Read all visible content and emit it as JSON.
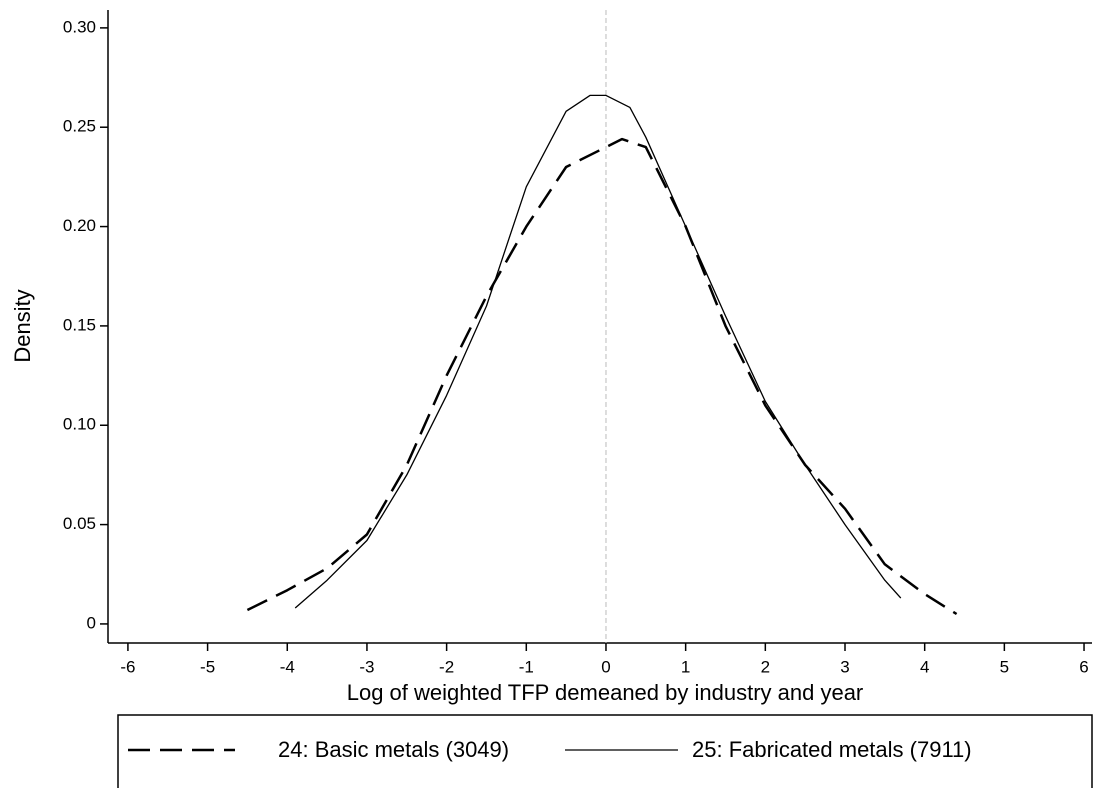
{
  "chart_data": {
    "type": "line",
    "x_label": "Log of weighted TFP demeaned by industry and year",
    "y_label": "Density",
    "xlim": [
      -6.25,
      6.1
    ],
    "ylim": [
      -0.0096,
      0.309
    ],
    "xticks": [
      -6,
      -5,
      -4,
      -3,
      -2,
      -1,
      0,
      1,
      2,
      3,
      4,
      5,
      6
    ],
    "yticks": [
      0,
      {
        "value": 0.05,
        "label": "0.05"
      },
      {
        "value": 0.1,
        "label": "0.10"
      },
      {
        "value": 0.15,
        "label": "0.15"
      },
      {
        "value": 0.2,
        "label": "0.20"
      },
      {
        "value": 0.25,
        "label": "0.25"
      },
      {
        "value": 0.3,
        "label": "0.30"
      }
    ],
    "vline": 0,
    "series": [
      {
        "name": "24: Basic metals (3049)",
        "color": "#000000",
        "line_style": "dashed",
        "x": [
          -4.5,
          -4,
          -3.5,
          -3,
          -2.5,
          -2,
          -1.5,
          -1,
          -0.5,
          0,
          0.2,
          0.5,
          1,
          1.5,
          2,
          2.5,
          3,
          3.5,
          4,
          4.4
        ],
        "values": [
          0.007,
          0.017,
          0.028,
          0.045,
          0.08,
          0.125,
          0.165,
          0.2,
          0.23,
          0.24,
          0.244,
          0.24,
          0.2,
          0.15,
          0.11,
          0.08,
          0.058,
          0.03,
          0.015,
          0.005
        ]
      },
      {
        "name": "25: Fabricated metals (7911)",
        "color": "#000000",
        "line_style": "solid",
        "x": [
          -3.9,
          -3.5,
          -3,
          -2.5,
          -2,
          -1.5,
          -1,
          -0.5,
          -0.2,
          0,
          0.3,
          0.5,
          1,
          1.5,
          2,
          2.5,
          3,
          3.5,
          3.7
        ],
        "values": [
          0.008,
          0.022,
          0.042,
          0.075,
          0.115,
          0.16,
          0.22,
          0.258,
          0.266,
          0.266,
          0.26,
          0.245,
          0.2,
          0.155,
          0.112,
          0.08,
          0.05,
          0.022,
          0.013
        ]
      }
    ]
  }
}
